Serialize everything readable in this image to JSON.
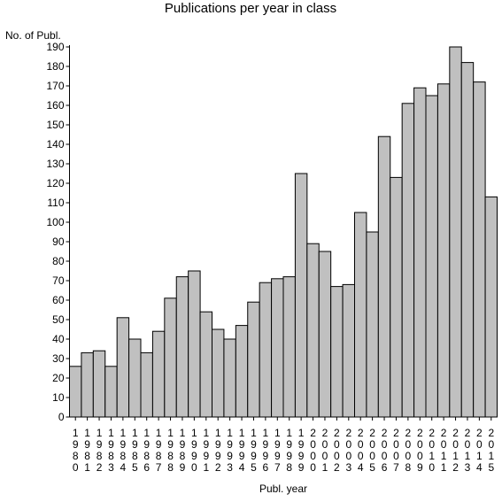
{
  "chart_data": {
    "type": "bar",
    "title": "Publications per year in class",
    "ylabel": "No. of Publ.",
    "xlabel": "Publ. year",
    "ylim": [
      0,
      190
    ],
    "yticks": [
      0,
      10,
      20,
      30,
      40,
      50,
      60,
      70,
      80,
      90,
      100,
      110,
      120,
      130,
      140,
      150,
      160,
      170,
      180,
      190
    ],
    "grid": false,
    "legend": "none",
    "categories": [
      "1980",
      "1981",
      "1982",
      "1983",
      "1984",
      "1985",
      "1986",
      "1987",
      "1988",
      "1989",
      "1990",
      "1991",
      "1992",
      "1993",
      "1994",
      "1995",
      "1996",
      "1997",
      "1998",
      "1999",
      "2000",
      "2001",
      "2002",
      "2003",
      "2004",
      "2005",
      "2006",
      "2007",
      "2008",
      "2009",
      "2010",
      "2011",
      "2012",
      "2013",
      "2014",
      "2015"
    ],
    "values": [
      26,
      33,
      34,
      26,
      51,
      40,
      33,
      44,
      61,
      72,
      75,
      54,
      45,
      40,
      47,
      59,
      69,
      71,
      72,
      125,
      89,
      85,
      67,
      68,
      105,
      95,
      144,
      123,
      161,
      169,
      165,
      171,
      190,
      182,
      172,
      113
    ],
    "colors": {
      "bar_fill": "#c0c0c0",
      "bar_stroke": "#000000",
      "axis": "#000000"
    }
  }
}
